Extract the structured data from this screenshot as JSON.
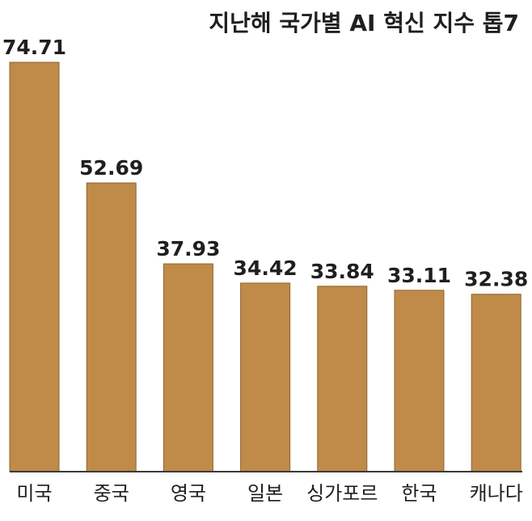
{
  "chart_data": {
    "type": "bar",
    "title": "지난해 국가별 AI 혁신 지수 톱7",
    "categories": [
      "미국",
      "중국",
      "영국",
      "일본",
      "싱가포르",
      "한국",
      "캐나다"
    ],
    "values": [
      74.71,
      52.69,
      37.93,
      34.42,
      33.84,
      33.11,
      32.38
    ],
    "value_labels": [
      "74.71",
      "52.69",
      "37.93",
      "34.42",
      "33.84",
      "33.11",
      "32.38"
    ],
    "xlabel": "",
    "ylabel": "",
    "ylim": [
      0,
      74.71
    ],
    "grid": false,
    "legend": "none",
    "colors": {
      "bar": "#C08A48",
      "bar_edge": "#8E6432",
      "axis": "#3a3a3a",
      "text": "#1f1f1f"
    }
  }
}
